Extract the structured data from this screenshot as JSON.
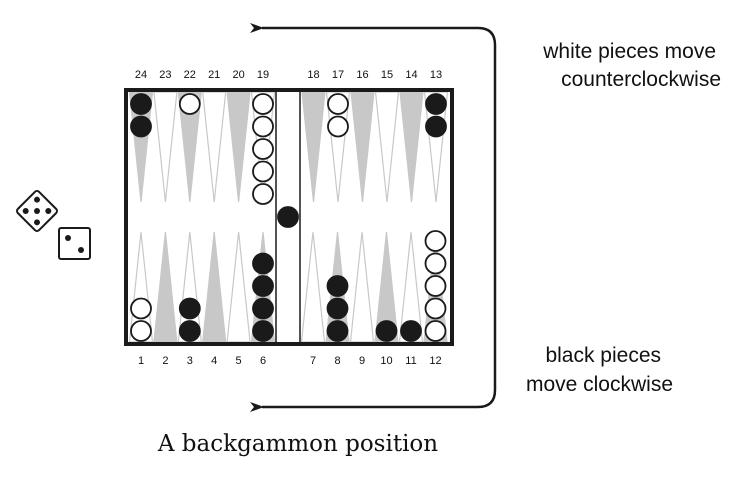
{
  "colors": {
    "board_frame": "#1a1a1a",
    "triangle_dark": "#c8c8c8",
    "triangle_light_outline": "#c8c8c8",
    "black_checker": "#1a1a1a",
    "white_checker": "#ffffff",
    "arrow": "#1a1a1a"
  },
  "notes": {
    "white_line1": "white pieces move",
    "white_line2": "counterclockwise",
    "black_line1": "black pieces",
    "black_line2": "move clockwise"
  },
  "caption": "A backgammon position",
  "dice": [
    {
      "value": 5,
      "orientation": "tilted"
    },
    {
      "value": 2,
      "orientation": "upright"
    }
  ],
  "bar": {
    "black": 1,
    "white": 0
  },
  "points": [
    {
      "num": 1,
      "color": "white",
      "count": 2
    },
    {
      "num": 2,
      "color": "",
      "count": 0
    },
    {
      "num": 3,
      "color": "black",
      "count": 2
    },
    {
      "num": 4,
      "color": "",
      "count": 0
    },
    {
      "num": 5,
      "color": "",
      "count": 0
    },
    {
      "num": 6,
      "color": "black",
      "count": 4
    },
    {
      "num": 7,
      "color": "",
      "count": 0
    },
    {
      "num": 8,
      "color": "black",
      "count": 3
    },
    {
      "num": 9,
      "color": "",
      "count": 0
    },
    {
      "num": 10,
      "color": "black",
      "count": 1
    },
    {
      "num": 11,
      "color": "black",
      "count": 1
    },
    {
      "num": 12,
      "color": "white",
      "count": 5
    },
    {
      "num": 13,
      "color": "black",
      "count": 2
    },
    {
      "num": 14,
      "color": "",
      "count": 0
    },
    {
      "num": 15,
      "color": "",
      "count": 0
    },
    {
      "num": 16,
      "color": "",
      "count": 0
    },
    {
      "num": 17,
      "color": "white",
      "count": 2
    },
    {
      "num": 18,
      "color": "",
      "count": 0
    },
    {
      "num": 19,
      "color": "white",
      "count": 5
    },
    {
      "num": 20,
      "color": "",
      "count": 0
    },
    {
      "num": 21,
      "color": "",
      "count": 0
    },
    {
      "num": 22,
      "color": "white",
      "count": 1
    },
    {
      "num": 23,
      "color": "",
      "count": 0
    },
    {
      "num": 24,
      "color": "black",
      "count": 2
    }
  ]
}
